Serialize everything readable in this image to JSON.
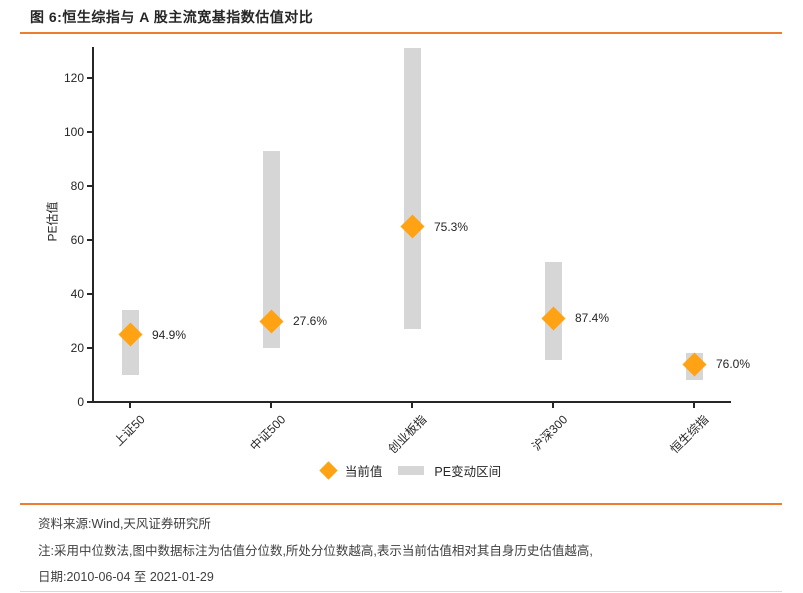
{
  "header": {
    "title": "图 6:恒生综指与 A 股主流宽基指数估值对比"
  },
  "chart_data": {
    "type": "bar",
    "subtype": "range-bar-with-current-marker",
    "title": "恒生综指与 A 股主流宽基指数估值对比",
    "xlabel": "",
    "ylabel": "PE估值",
    "yticks": [
      0,
      20,
      40,
      60,
      80,
      100,
      120
    ],
    "ylim": [
      0,
      131.5
    ],
    "grid": false,
    "legend_position": "bottom-center",
    "categories": [
      "上证50",
      "中证500",
      "创业板指",
      "沪深300",
      "恒生综指"
    ],
    "series": [
      {
        "name": "当前值",
        "type": "marker",
        "values": [
          25,
          30,
          65,
          31,
          14
        ]
      },
      {
        "name": "PE变动区间",
        "type": "range",
        "low": [
          10,
          20,
          27,
          15.5,
          8
        ],
        "high": [
          34,
          93,
          131,
          52,
          18
        ]
      }
    ],
    "annotations": [
      "94.9%",
      "27.6%",
      "75.3%",
      "87.4%",
      "76.0%"
    ],
    "legend": [
      {
        "label": "当前值",
        "swatch": "diamond"
      },
      {
        "label": "PE变动区间",
        "swatch": "bar"
      }
    ],
    "colors": {
      "marker": "#FFA315",
      "range": "#D6D6D6",
      "accent_rule": "#ED7D31"
    }
  },
  "footer": {
    "source": "资料来源:Wind,天风证券研究所",
    "note": "注:采用中位数法,图中数据标注为估值分位数,所处分位数越高,表示当前估值相对其自身历史估值越高,",
    "date": "日期:2010-06-04 至 2021-01-29"
  }
}
